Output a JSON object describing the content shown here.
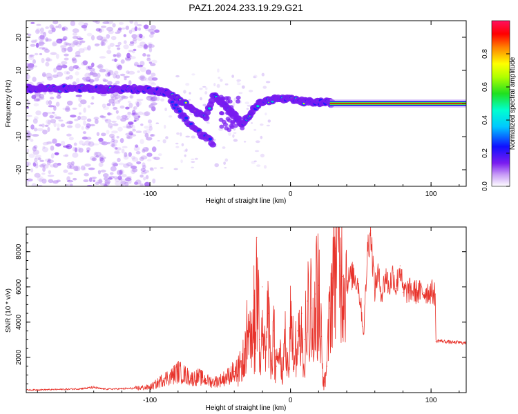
{
  "title": "PAZ1.2024.233.19.29.G21",
  "colors": {
    "snr_line": "#e8322a",
    "track_core": "#ff0000",
    "track_edge": "#00e070",
    "blob_main": "#7a1cf0",
    "blob_faint": "#d8c2f6"
  },
  "chart_data": [
    {
      "type": "heatmap",
      "title": "PAZ1.2024.233.19.29.G21",
      "xlabel": "Height of straight line (km)",
      "ylabel": "Frequency (Hz)",
      "xlim": [
        -188,
        125
      ],
      "ylim": [
        -25,
        25
      ],
      "xticks": [
        -100,
        0,
        100
      ],
      "yticks": [
        -20,
        -10,
        0,
        10,
        20
      ],
      "colorbar": {
        "label": "Normalized spectral amplitude",
        "range": [
          0,
          1
        ],
        "ticks": [
          "0.0",
          "0.2",
          "0.4",
          "0.6",
          "0.8"
        ],
        "colormap": "rainbow (white-violet-blue-cyan-green-yellow-red-magenta)"
      },
      "main_track": {
        "x": [
          -188,
          -170,
          -150,
          -130,
          -115,
          -100,
          -90,
          -80,
          -72,
          -66,
          -60,
          -55,
          -50,
          -45,
          -40,
          -35,
          -30,
          -25,
          -20,
          -10,
          0,
          10,
          20,
          30,
          125
        ],
        "y": [
          4.5,
          4.5,
          4.6,
          4.3,
          4.4,
          4.2,
          3.5,
          1.5,
          -1.0,
          -3.0,
          -4.0,
          2.5,
          0.5,
          -1.5,
          -3.5,
          -6.0,
          -4.0,
          -1.0,
          0.5,
          1.5,
          1.2,
          0.5,
          0.4,
          0.2,
          0.0
        ]
      },
      "secondary_track": {
        "x": [
          -85,
          -78,
          -72,
          -66,
          -60,
          -55
        ],
        "y": [
          1.0,
          -3.0,
          -6.0,
          -8.5,
          -10.5,
          -12.0
        ]
      }
    },
    {
      "type": "line",
      "xlabel": "Height of straight line (km)",
      "ylabel": "SNR (10 * v/v)",
      "xlim": [
        -188,
        125
      ],
      "ylim": [
        0,
        9400
      ],
      "xticks": [
        -100,
        0,
        100
      ],
      "yticks": [
        2000,
        4000,
        6000,
        8000
      ],
      "series": [
        {
          "x": [
            -188,
            -180,
            -170,
            -160,
            -150,
            -145,
            -140,
            -135,
            -130,
            -120,
            -110,
            -100,
            -95,
            -90,
            -85,
            -80,
            -75,
            -70,
            -65,
            -60,
            -55,
            -50,
            -45,
            -40,
            -35,
            -32,
            -30,
            -28,
            -26,
            -25,
            -24,
            -22,
            -20,
            -18,
            -16,
            -14,
            -12,
            -10,
            -8,
            -6,
            -4,
            -2,
            0,
            2,
            5,
            8,
            10,
            12,
            15,
            18,
            20,
            22,
            23,
            24,
            26,
            28,
            30,
            32,
            33,
            35,
            37,
            40,
            45,
            48,
            50,
            52,
            55,
            57,
            60,
            62,
            65,
            68,
            70,
            73,
            75,
            78,
            80,
            85,
            90,
            95,
            100,
            102,
            103,
            103.5,
            105,
            110,
            115,
            120,
            125
          ],
          "values": [
            150,
            160,
            170,
            190,
            220,
            250,
            300,
            220,
            200,
            220,
            250,
            300,
            500,
            800,
            900,
            1200,
            1000,
            800,
            900,
            700,
            600,
            700,
            900,
            1200,
            1500,
            2500,
            4000,
            3000,
            5500,
            2200,
            8800,
            3000,
            6000,
            2000,
            4500,
            1800,
            3500,
            1500,
            2500,
            1200,
            3000,
            1800,
            4000,
            2500,
            3500,
            4500,
            3000,
            5200,
            4800,
            5600,
            6100,
            3200,
            900,
            600,
            1500,
            4800,
            6500,
            8200,
            9400,
            7200,
            6600,
            6300,
            6700,
            6200,
            5000,
            3300,
            8300,
            9200,
            5800,
            6800,
            5600,
            6700,
            5900,
            6800,
            5900,
            7200,
            5700,
            5800,
            5700,
            5700,
            5750,
            5650,
            5600,
            2900,
            2950,
            2900,
            2850,
            2850,
            2800
          ]
        }
      ]
    }
  ]
}
